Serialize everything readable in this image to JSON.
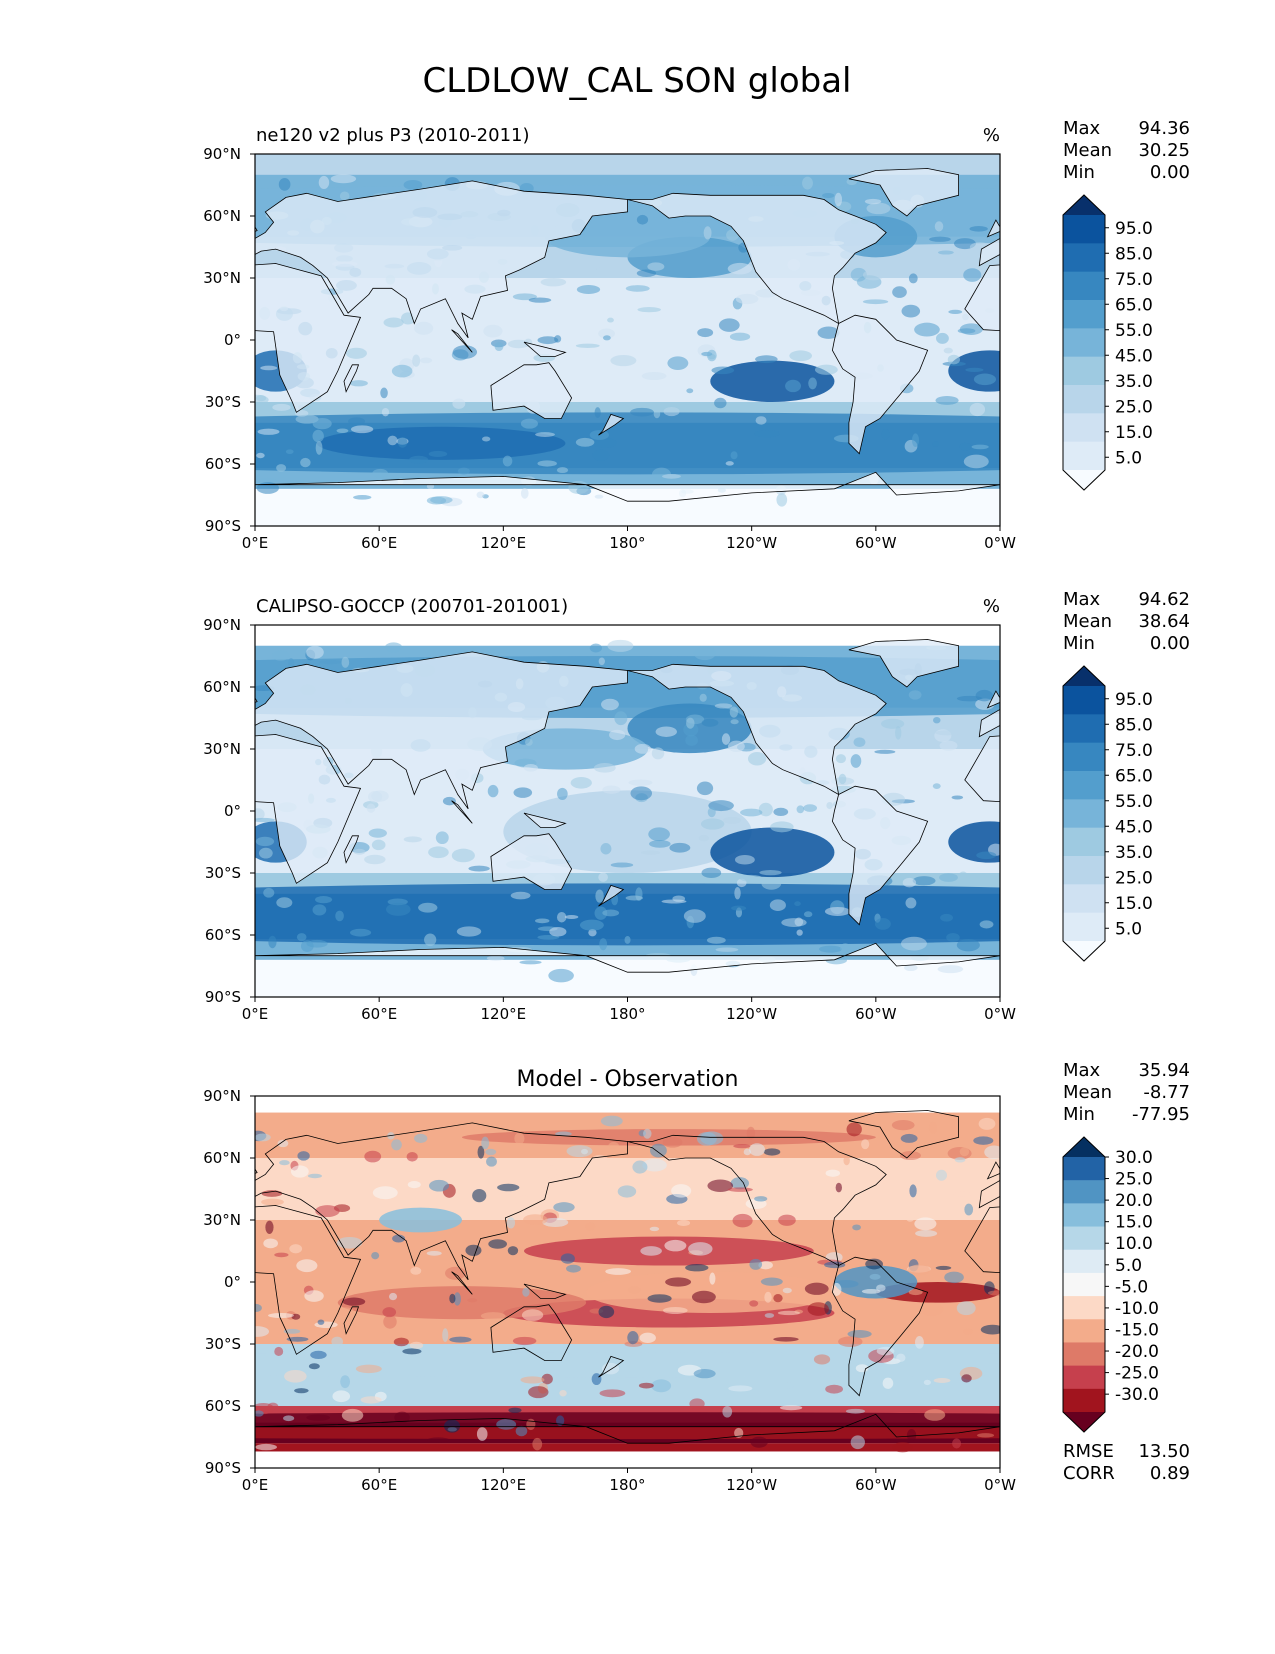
{
  "figure_title": "CLDLOW_CAL SON global",
  "colors": {
    "blues": [
      "#f7fbff",
      "#deebf7",
      "#cfe1f2",
      "#b8d5ea",
      "#9ecae1",
      "#77b4d9",
      "#539ecd",
      "#3787c0",
      "#1f6db1",
      "#0b539e",
      "#08306b"
    ],
    "diff": [
      "#67001f",
      "#a1141e",
      "#c6404d",
      "#de7a68",
      "#f3ac8b",
      "#fcd9c6",
      "#f7f7f7",
      "#deebf4",
      "#b6d7e8",
      "#87bedc",
      "#5094c3",
      "#2263a6",
      "#053061"
    ],
    "land_white": "#ffffff",
    "coast": "#000000"
  },
  "chart_data": [
    {
      "type": "heatmap",
      "title": "ne120 v2 plus P3 (2010-2011)",
      "units": "%",
      "stats": [
        {
          "label": "Max",
          "value": "94.36"
        },
        {
          "label": "Mean",
          "value": "30.25"
        },
        {
          "label": "Min",
          "value": "0.00"
        }
      ],
      "colorbar": {
        "labels": [
          "95.0",
          "85.0",
          "75.0",
          "65.0",
          "55.0",
          "45.0",
          "35.0",
          "25.0",
          "15.0",
          "5.0"
        ]
      },
      "xticks": [
        "0°E",
        "60°E",
        "120°E",
        "180°",
        "120°W",
        "60°W",
        "0°W"
      ],
      "yticks": [
        "90°N",
        "60°N",
        "30°N",
        "0°",
        "30°S",
        "60°S",
        "90°S"
      ],
      "xlim": [
        0,
        360
      ],
      "ylim": [
        -90,
        90
      ]
    },
    {
      "type": "heatmap",
      "title": "CALIPSO-GOCCP (200701-201001)",
      "units": "%",
      "stats": [
        {
          "label": "Max",
          "value": "94.62"
        },
        {
          "label": "Mean",
          "value": "38.64"
        },
        {
          "label": "Min",
          "value": "0.00"
        }
      ],
      "colorbar": {
        "labels": [
          "95.0",
          "85.0",
          "75.0",
          "65.0",
          "55.0",
          "45.0",
          "35.0",
          "25.0",
          "15.0",
          "5.0"
        ]
      },
      "xticks": [
        "0°E",
        "60°E",
        "120°E",
        "180°",
        "120°W",
        "60°W",
        "0°W"
      ],
      "yticks": [
        "90°N",
        "60°N",
        "30°N",
        "0°",
        "30°S",
        "60°S",
        "90°S"
      ],
      "xlim": [
        0,
        360
      ],
      "ylim": [
        -90,
        90
      ]
    },
    {
      "type": "heatmap",
      "title": "Model - Observation",
      "stats": [
        {
          "label": "Max",
          "value": "35.94"
        },
        {
          "label": "Mean",
          "value": "-8.77"
        },
        {
          "label": "Min",
          "value": "-77.95"
        }
      ],
      "colorbar": {
        "labels": [
          "30.0",
          "25.0",
          "20.0",
          "15.0",
          "10.0",
          "5.0",
          "-5.0",
          "-10.0",
          "-15.0",
          "-20.0",
          "-25.0",
          "-30.0"
        ]
      },
      "metrics": [
        {
          "label": "RMSE",
          "value": "13.50"
        },
        {
          "label": "CORR",
          "value": "0.89"
        }
      ],
      "xticks": [
        "0°E",
        "60°E",
        "120°E",
        "180°",
        "120°W",
        "60°W",
        "0°W"
      ],
      "yticks": [
        "90°N",
        "60°N",
        "30°N",
        "0°",
        "30°S",
        "60°S",
        "90°S"
      ],
      "xlim": [
        0,
        360
      ],
      "ylim": [
        -90,
        90
      ]
    }
  ]
}
